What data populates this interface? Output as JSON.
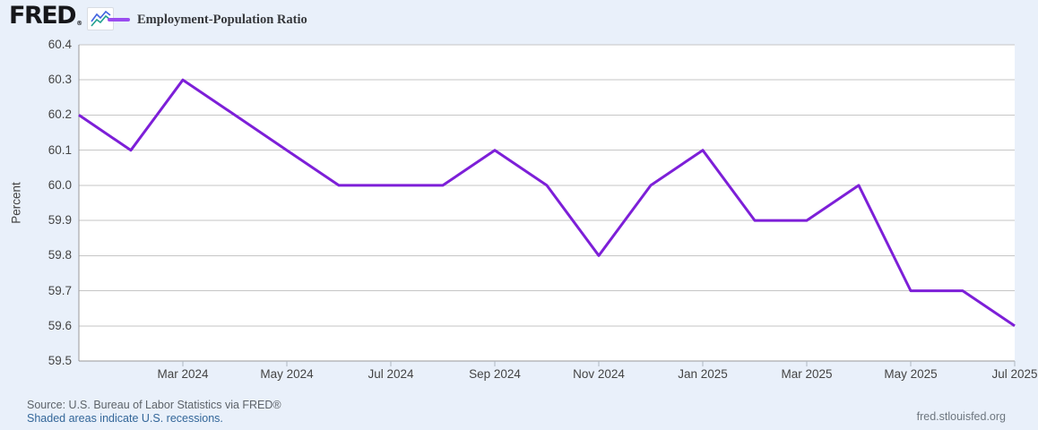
{
  "header": {
    "logo": "FRED",
    "registered": "®",
    "legend_label": "Employment-Population Ratio"
  },
  "chart_data": {
    "type": "line",
    "title": "Employment-Population Ratio",
    "xlabel": "",
    "ylabel": "Percent",
    "ylim": [
      59.5,
      60.4
    ],
    "ytick_step": 0.1,
    "yticks": [
      60.4,
      60.3,
      60.2,
      60.1,
      60.0,
      59.9,
      59.8,
      59.7,
      59.6,
      59.5
    ],
    "x": [
      "Jan 2024",
      "Feb 2024",
      "Mar 2024",
      "Apr 2024",
      "May 2024",
      "Jun 2024",
      "Jul 2024",
      "Aug 2024",
      "Sep 2024",
      "Oct 2024",
      "Nov 2024",
      "Dec 2024",
      "Jan 2025",
      "Feb 2025",
      "Mar 2025",
      "Apr 2025",
      "May 2025",
      "Jun 2025",
      "Jul 2025"
    ],
    "values": [
      60.2,
      60.1,
      60.3,
      60.2,
      60.1,
      60.0,
      60.0,
      60.0,
      60.1,
      60.0,
      59.8,
      60.0,
      60.1,
      59.9,
      59.9,
      60.0,
      59.7,
      59.7,
      59.6
    ],
    "xticks": [
      {
        "label": "Mar 2024",
        "index": 2
      },
      {
        "label": "May 2024",
        "index": 4
      },
      {
        "label": "Jul 2024",
        "index": 6
      },
      {
        "label": "Sep 2024",
        "index": 8
      },
      {
        "label": "Nov 2024",
        "index": 10
      },
      {
        "label": "Jan 2025",
        "index": 12
      },
      {
        "label": "Mar 2025",
        "index": 14
      },
      {
        "label": "May 2025",
        "index": 16
      },
      {
        "label": "Jul 2025",
        "index": 18
      }
    ],
    "grid": "horizontal",
    "legend_position": "top-left"
  },
  "footer": {
    "source": "Source: U.S. Bureau of Labor Statistics via FRED®",
    "recession_note": "Shaded areas indicate U.S. recessions.",
    "site": "fred.stlouisfed.org"
  },
  "colors": {
    "background": "#e9f0fa",
    "plot_background": "#ffffff",
    "line": "#7d1fd8",
    "legend_swatch": "#9a4cf0",
    "gridline": "#c6c6c6",
    "axis": "#999999",
    "tick_mark": "#b0b8c2",
    "tick_label": "#444444"
  }
}
